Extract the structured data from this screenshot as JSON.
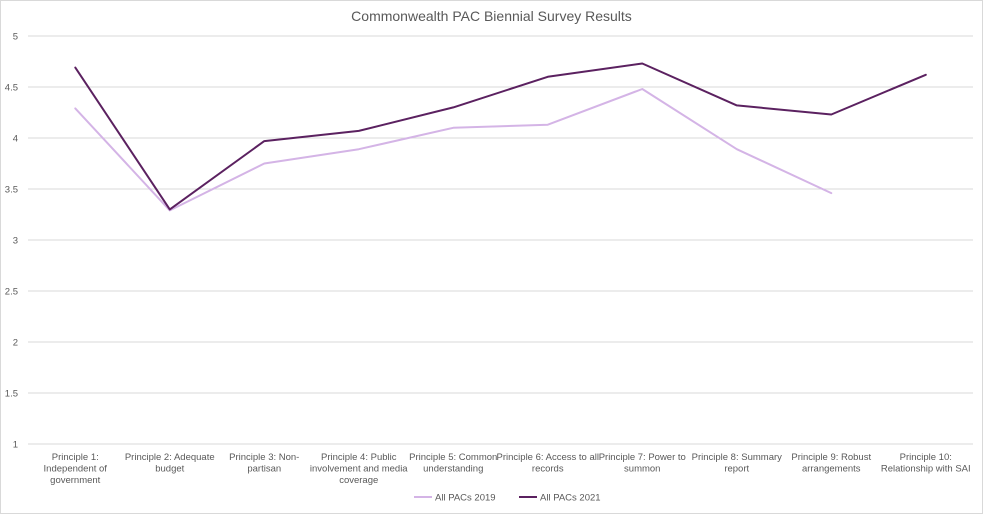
{
  "chart_data": {
    "type": "line",
    "title": "Commonwealth PAC Biennial Survey Results",
    "xlabel": "",
    "ylabel": "",
    "ylim": [
      1,
      5
    ],
    "yticks": [
      "1",
      "1.5",
      "2",
      "2.5",
      "3",
      "3.5",
      "4",
      "4.5",
      "5"
    ],
    "grid": true,
    "legend_position": "bottom",
    "categories": [
      [
        "Principle 1:",
        "Independent of",
        "government"
      ],
      [
        "Principle 2: Adequate",
        "budget"
      ],
      [
        "Principle 3: Non-",
        "partisan"
      ],
      [
        "Principle 4: Public",
        "involvement and media",
        "coverage"
      ],
      [
        "Principle 5: Common",
        "understanding"
      ],
      [
        "Principle 6: Access to all",
        "records"
      ],
      [
        "Principle 7: Power to",
        "summon"
      ],
      [
        "Principle 8: Summary",
        "report"
      ],
      [
        "Principle 9: Robust",
        "arrangements"
      ],
      [
        "Principle 10:",
        "Relationship with SAI"
      ]
    ],
    "series": [
      {
        "name": "All PACs 2019",
        "color": "#d4b4e6",
        "values": [
          4.29,
          3.29,
          3.75,
          3.89,
          4.1,
          4.13,
          4.48,
          3.89,
          3.46,
          null
        ]
      },
      {
        "name": "All PACs 2021",
        "color": "#5b2160",
        "values": [
          4.69,
          3.3,
          3.97,
          4.07,
          4.3,
          4.6,
          4.73,
          4.32,
          4.23,
          4.62
        ]
      }
    ],
    "colors": {
      "grid": "#d9d9d9",
      "text": "#595959",
      "axis": "#bfbfbf"
    }
  }
}
